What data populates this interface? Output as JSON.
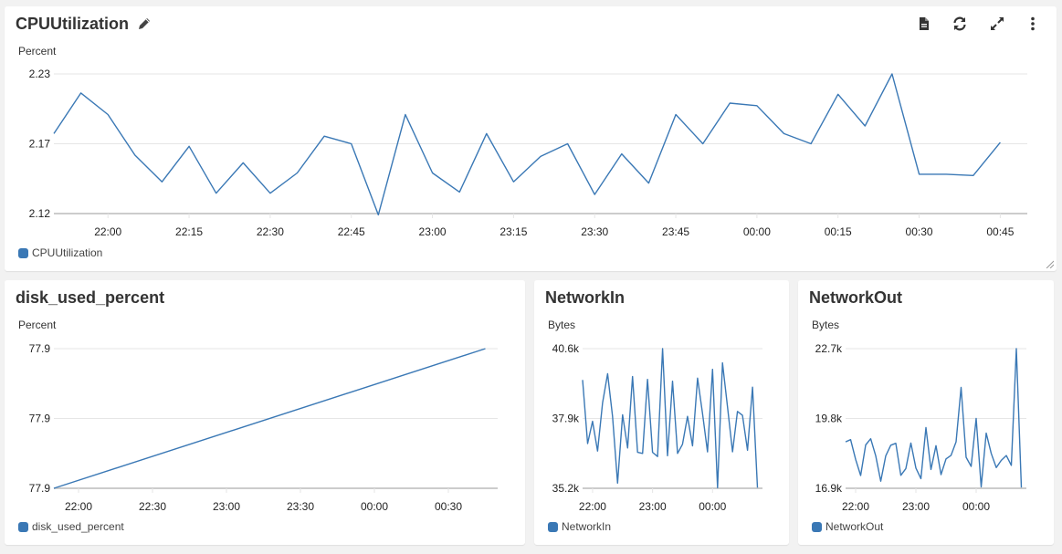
{
  "colors": {
    "series": "#3a78b5",
    "grid": "#e6e6e6",
    "axis": "#cccccc",
    "background": "#f2f2f2"
  },
  "icons": {
    "edit": "pencil-icon",
    "source": "document-icon",
    "refresh": "refresh-icon",
    "expand": "expand-icon",
    "menu": "kebab-menu-icon",
    "resize": "resize-handle-icon"
  },
  "panels": {
    "cpu": {
      "title": "CPUUtilization",
      "unit": "Percent",
      "legend": "CPUUtilization"
    },
    "disk": {
      "title": "disk_used_percent",
      "unit": "Percent",
      "legend": "disk_used_percent"
    },
    "netin": {
      "title": "NetworkIn",
      "unit": "Bytes",
      "legend": "NetworkIn"
    },
    "netout": {
      "title": "NetworkOut",
      "unit": "Bytes",
      "legend": "NetworkOut"
    }
  },
  "chart_data": [
    {
      "id": "cpu",
      "type": "line",
      "title": "CPUUtilization",
      "ylabel": "Percent",
      "xlim": [
        "21:50",
        "00:50"
      ],
      "ylim": [
        2.12,
        2.23
      ],
      "x_ticks": [
        "22:00",
        "22:15",
        "22:30",
        "22:45",
        "23:00",
        "23:15",
        "23:30",
        "23:45",
        "00:00",
        "00:15",
        "00:30",
        "00:45"
      ],
      "y_ticks": [
        {
          "value": 2.12,
          "label": "2.12"
        },
        {
          "value": 2.175,
          "label": "2.17"
        },
        {
          "value": 2.23,
          "label": "2.23"
        }
      ],
      "grid": true,
      "legend": "bottom-left",
      "series": [
        {
          "name": "CPUUtilization",
          "x": [
            "21:50",
            "21:55",
            "22:00",
            "22:05",
            "22:10",
            "22:15",
            "22:20",
            "22:25",
            "22:30",
            "22:35",
            "22:40",
            "22:45",
            "22:50",
            "22:55",
            "23:00",
            "23:05",
            "23:10",
            "23:15",
            "23:20",
            "23:25",
            "23:30",
            "23:35",
            "23:40",
            "23:45",
            "23:50",
            "23:55",
            "00:00",
            "00:05",
            "00:10",
            "00:15",
            "00:20",
            "00:25",
            "00:30",
            "00:35",
            "00:40",
            "00:45"
          ],
          "values": [
            2.183,
            2.215,
            2.198,
            2.166,
            2.145,
            2.173,
            2.136,
            2.16,
            2.136,
            2.152,
            2.181,
            2.175,
            2.119,
            2.198,
            2.152,
            2.137,
            2.183,
            2.145,
            2.165,
            2.175,
            2.135,
            2.167,
            2.144,
            2.198,
            2.175,
            2.207,
            2.205,
            2.183,
            2.175,
            2.214,
            2.189,
            2.23,
            2.151,
            2.151,
            2.15,
            2.176
          ]
        }
      ]
    },
    {
      "id": "disk",
      "type": "line",
      "title": "disk_used_percent",
      "ylabel": "Percent",
      "xlim": [
        "21:50",
        "00:50"
      ],
      "ylim": [
        77.88,
        77.92
      ],
      "x_ticks": [
        "22:00",
        "22:30",
        "23:00",
        "23:30",
        "00:00",
        "00:30"
      ],
      "y_ticks": [
        {
          "value": 77.88,
          "label": "77.9"
        },
        {
          "value": 77.9,
          "label": "77.9"
        },
        {
          "value": 77.92,
          "label": "77.9"
        }
      ],
      "grid": true,
      "legend": "bottom-left",
      "series": [
        {
          "name": "disk_used_percent",
          "x": [
            "21:50",
            "00:45"
          ],
          "values": [
            77.88,
            77.92
          ]
        }
      ]
    },
    {
      "id": "netin",
      "type": "line",
      "title": "NetworkIn",
      "ylabel": "Bytes",
      "xlim": [
        "21:50",
        "00:50"
      ],
      "ylim": [
        35200,
        40600
      ],
      "x_ticks": [
        "22:00",
        "23:00",
        "00:00"
      ],
      "y_ticks": [
        {
          "value": 35200,
          "label": "35.2k"
        },
        {
          "value": 37900,
          "label": "37.9k"
        },
        {
          "value": 40600,
          "label": "40.6k"
        }
      ],
      "grid": true,
      "legend": "bottom-left",
      "series": [
        {
          "name": "NetworkIn",
          "x": [
            "21:50",
            "21:55",
            "22:00",
            "22:05",
            "22:10",
            "22:15",
            "22:20",
            "22:25",
            "22:30",
            "22:35",
            "22:40",
            "22:45",
            "22:50",
            "22:55",
            "23:00",
            "23:05",
            "23:10",
            "23:15",
            "23:20",
            "23:25",
            "23:30",
            "23:35",
            "23:40",
            "23:45",
            "23:50",
            "23:55",
            "00:00",
            "00:05",
            "00:10",
            "00:15",
            "00:20",
            "00:25",
            "00:30",
            "00:35",
            "00:40",
            "00:45"
          ],
          "values": [
            39390,
            36930,
            37790,
            36640,
            38510,
            39630,
            37980,
            35400,
            38040,
            36760,
            39520,
            36590,
            36550,
            39410,
            36590,
            36430,
            40600,
            36460,
            39340,
            36550,
            36900,
            37980,
            36840,
            39460,
            38100,
            36610,
            39800,
            35220,
            40050,
            38350,
            36610,
            38170,
            38020,
            36670,
            39110,
            35220
          ]
        }
      ]
    },
    {
      "id": "netout",
      "type": "line",
      "title": "NetworkOut",
      "ylabel": "Bytes",
      "xlim": [
        "21:50",
        "00:50"
      ],
      "ylim": [
        16900,
        22700
      ],
      "x_ticks": [
        "22:00",
        "23:00",
        "00:00"
      ],
      "y_ticks": [
        {
          "value": 16900,
          "label": "16.9k"
        },
        {
          "value": 19800,
          "label": "19.8k"
        },
        {
          "value": 22700,
          "label": "22.7k"
        }
      ],
      "grid": true,
      "legend": "bottom-left",
      "series": [
        {
          "name": "NetworkOut",
          "x": [
            "21:50",
            "21:55",
            "22:00",
            "22:05",
            "22:10",
            "22:15",
            "22:20",
            "22:25",
            "22:30",
            "22:35",
            "22:40",
            "22:45",
            "22:50",
            "22:55",
            "23:00",
            "23:05",
            "23:10",
            "23:15",
            "23:20",
            "23:25",
            "23:30",
            "23:35",
            "23:40",
            "23:45",
            "23:50",
            "23:55",
            "00:00",
            "00:05",
            "00:10",
            "00:15",
            "00:20",
            "00:25",
            "00:30",
            "00:35",
            "00:40",
            "00:45"
          ],
          "values": [
            18830,
            18920,
            18100,
            17430,
            18700,
            18960,
            18250,
            17190,
            18250,
            18690,
            18770,
            17440,
            17720,
            18780,
            17740,
            17300,
            19420,
            17680,
            18670,
            17470,
            18120,
            18270,
            18830,
            21090,
            18190,
            17810,
            19800,
            16960,
            19190,
            18350,
            17760,
            18060,
            18260,
            17850,
            22700,
            16930
          ]
        }
      ]
    }
  ]
}
